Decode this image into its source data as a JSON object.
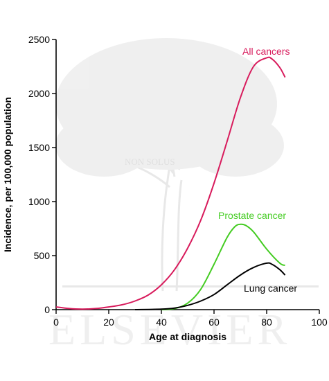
{
  "chart_data": {
    "type": "line",
    "title": "",
    "xlabel": "Age at diagnosis",
    "ylabel": "Incidence, per 100,000 population",
    "xlim": [
      0,
      100
    ],
    "ylim": [
      0,
      2500
    ],
    "x_ticks": [
      0,
      20,
      40,
      60,
      80,
      100
    ],
    "y_ticks": [
      0,
      500,
      1000,
      1500,
      2000,
      2500
    ],
    "grid": false,
    "legend": "inline labels next to curves",
    "series": [
      {
        "name": "All cancers",
        "color": "#d81b5c",
        "x": [
          0,
          5,
          10,
          15,
          20,
          25,
          30,
          35,
          40,
          45,
          50,
          55,
          60,
          65,
          70,
          75,
          80,
          82,
          85,
          87
        ],
        "y": [
          25,
          10,
          5,
          10,
          25,
          45,
          80,
          135,
          230,
          370,
          570,
          830,
          1170,
          1560,
          1960,
          2250,
          2330,
          2320,
          2240,
          2150
        ]
      },
      {
        "name": "Prostate cancer",
        "color": "#44cc22",
        "x": [
          40,
          45,
          50,
          55,
          60,
          65,
          68,
          70,
          72,
          75,
          80,
          85,
          87
        ],
        "y": [
          0,
          10,
          60,
          190,
          420,
          670,
          770,
          790,
          780,
          720,
          560,
          430,
          410
        ]
      },
      {
        "name": "Lung cancer",
        "color": "#000000",
        "x": [
          30,
          40,
          45,
          50,
          55,
          60,
          65,
          70,
          75,
          80,
          82,
          85,
          87
        ],
        "y": [
          0,
          5,
          15,
          40,
          80,
          140,
          230,
          320,
          390,
          430,
          420,
          370,
          320
        ]
      }
    ],
    "series_labels": [
      "All cancers",
      "Prostate cancer",
      "Lung cancer"
    ]
  },
  "watermark": {
    "brand": "ELSEVIER",
    "motto": "NON SOLUS"
  }
}
